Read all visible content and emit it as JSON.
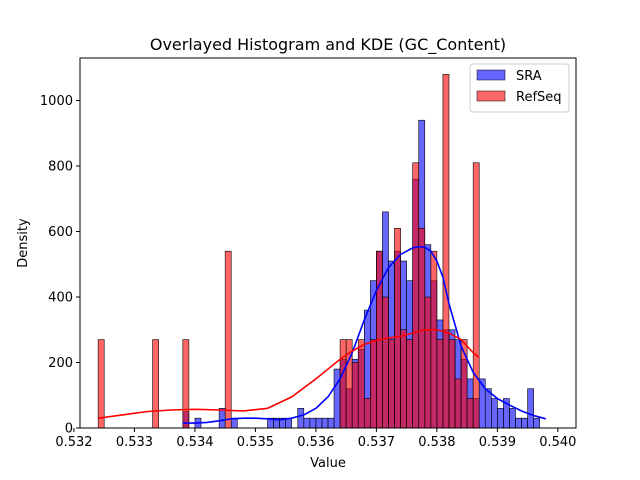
{
  "chart_data": {
    "type": "bar",
    "title": "Overlayed Histogram and KDE (GC_Content)",
    "xlabel": "Value",
    "ylabel": "Density",
    "xlim": [
      0.5321,
      0.5403
    ],
    "ylim": [
      0,
      1130
    ],
    "xticks": [
      0.532,
      0.533,
      0.534,
      0.535,
      0.536,
      0.537,
      0.538,
      0.539,
      0.54
    ],
    "xtick_labels": [
      "0.532",
      "0.533",
      "0.534",
      "0.535",
      "0.536",
      "0.537",
      "0.538",
      "0.539",
      "0.540"
    ],
    "yticks": [
      0,
      200,
      400,
      600,
      800,
      1000
    ],
    "ytick_labels": [
      "0",
      "200",
      "400",
      "600",
      "800",
      "1000"
    ],
    "legend": {
      "placement": "top-right",
      "entries": [
        "SRA",
        "RefSeq"
      ]
    },
    "series": [
      {
        "name": "SRA",
        "color": "#0000ff",
        "bin_width": 0.0001,
        "bins": [
          [
            0.5338,
            50
          ],
          [
            0.5339,
            0
          ],
          [
            0.534,
            30
          ],
          [
            0.5341,
            0
          ],
          [
            0.5342,
            0
          ],
          [
            0.5343,
            0
          ],
          [
            0.5344,
            60
          ],
          [
            0.5345,
            0
          ],
          [
            0.5346,
            30
          ],
          [
            0.5347,
            0
          ],
          [
            0.5348,
            0
          ],
          [
            0.5349,
            0
          ],
          [
            0.535,
            0
          ],
          [
            0.5351,
            0
          ],
          [
            0.5352,
            30
          ],
          [
            0.5353,
            30
          ],
          [
            0.5354,
            30
          ],
          [
            0.5355,
            30
          ],
          [
            0.5356,
            0
          ],
          [
            0.5357,
            60
          ],
          [
            0.5358,
            30
          ],
          [
            0.5359,
            30
          ],
          [
            0.536,
            30
          ],
          [
            0.5361,
            30
          ],
          [
            0.5362,
            30
          ],
          [
            0.5363,
            180
          ],
          [
            0.5364,
            210
          ],
          [
            0.5365,
            120
          ],
          [
            0.5366,
            210
          ],
          [
            0.5367,
            240
          ],
          [
            0.5368,
            360
          ],
          [
            0.5369,
            450
          ],
          [
            0.537,
            540
          ],
          [
            0.5371,
            660
          ],
          [
            0.5372,
            510
          ],
          [
            0.5373,
            540
          ],
          [
            0.5374,
            510
          ],
          [
            0.5375,
            450
          ],
          [
            0.5376,
            760
          ],
          [
            0.5377,
            940
          ],
          [
            0.5378,
            560
          ],
          [
            0.5379,
            450
          ],
          [
            0.538,
            330
          ],
          [
            0.5381,
            300
          ],
          [
            0.5382,
            300
          ],
          [
            0.5383,
            270
          ],
          [
            0.5384,
            210
          ],
          [
            0.5385,
            150
          ],
          [
            0.5386,
            90
          ],
          [
            0.5387,
            150
          ],
          [
            0.5388,
            120
          ],
          [
            0.5389,
            90
          ],
          [
            0.539,
            60
          ],
          [
            0.5391,
            90
          ],
          [
            0.5392,
            60
          ],
          [
            0.5393,
            30
          ],
          [
            0.5394,
            30
          ],
          [
            0.5395,
            120
          ],
          [
            0.5396,
            30
          ]
        ],
        "kde_x": [
          0.5338,
          0.534,
          0.5342,
          0.5344,
          0.5346,
          0.5348,
          0.535,
          0.5352,
          0.5354,
          0.5356,
          0.5358,
          0.536,
          0.5362,
          0.5364,
          0.5366,
          0.5368,
          0.537,
          0.5372,
          0.5374,
          0.5376,
          0.5377,
          0.5378,
          0.5379,
          0.538,
          0.5381,
          0.5382,
          0.5384,
          0.5386,
          0.5388,
          0.539,
          0.5392,
          0.5394,
          0.5396,
          0.5398
        ],
        "kde_y": [
          15,
          15,
          17,
          22,
          28,
          30,
          30,
          28,
          25,
          30,
          40,
          60,
          95,
          150,
          230,
          330,
          420,
          490,
          530,
          550,
          554,
          552,
          540,
          510,
          460,
          380,
          250,
          170,
          120,
          90,
          70,
          52,
          38,
          28
        ]
      },
      {
        "name": "RefSeq",
        "color": "#ff0000",
        "bin_width": 0.0001,
        "bins": [
          [
            0.5324,
            270
          ],
          [
            0.5333,
            270
          ],
          [
            0.5338,
            270
          ],
          [
            0.5345,
            540
          ],
          [
            0.5364,
            270
          ],
          [
            0.5365,
            270
          ],
          [
            0.5366,
            200
          ],
          [
            0.5367,
            270
          ],
          [
            0.5368,
            90
          ],
          [
            0.5369,
            270
          ],
          [
            0.537,
            540
          ],
          [
            0.5371,
            400
          ],
          [
            0.5372,
            270
          ],
          [
            0.5373,
            610
          ],
          [
            0.5374,
            300
          ],
          [
            0.5375,
            270
          ],
          [
            0.5376,
            810
          ],
          [
            0.5377,
            610
          ],
          [
            0.5378,
            400
          ],
          [
            0.5379,
            540
          ],
          [
            0.538,
            270
          ],
          [
            0.5381,
            1080
          ],
          [
            0.5382,
            270
          ],
          [
            0.5383,
            150
          ],
          [
            0.5384,
            270
          ],
          [
            0.5385,
            90
          ],
          [
            0.5386,
            810
          ]
        ],
        "kde_x": [
          0.5324,
          0.5328,
          0.5332,
          0.5336,
          0.534,
          0.5344,
          0.5348,
          0.5352,
          0.5356,
          0.536,
          0.5362,
          0.5364,
          0.5366,
          0.5368,
          0.537,
          0.5372,
          0.5374,
          0.5376,
          0.5378,
          0.538,
          0.5382,
          0.5384,
          0.5386,
          0.5387
        ],
        "kde_y": [
          30,
          40,
          50,
          55,
          57,
          55,
          52,
          60,
          95,
          150,
          180,
          210,
          235,
          255,
          268,
          275,
          280,
          290,
          300,
          300,
          290,
          270,
          230,
          215
        ]
      }
    ]
  }
}
